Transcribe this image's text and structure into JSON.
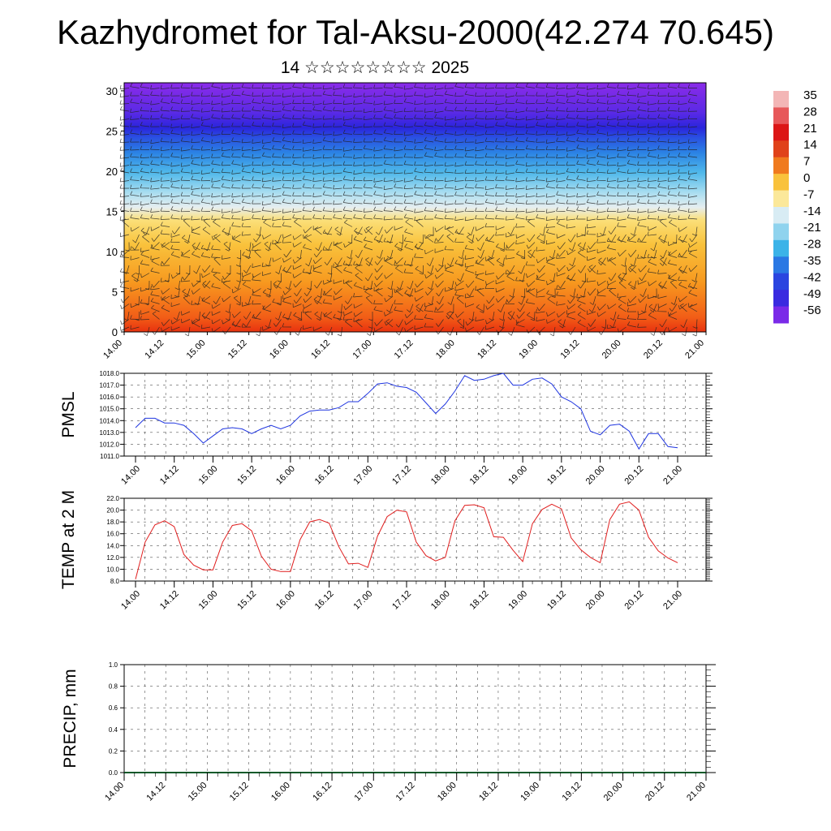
{
  "title": "Kazhydromet for Tal-Aksu-2000(42.274 70.645)",
  "subtitle": "14 ☆☆☆☆☆☆☆☆ 2025",
  "colors": {
    "pmsl_line": "#1f35e0",
    "temp_line": "#e01d1d",
    "grid": "#555555",
    "precip_baseline": "#0a5a2a"
  },
  "chart_data": [
    {
      "type": "heatmap",
      "name_hint": "cross-section",
      "x_tick_labels": [
        "14.00",
        "14.12",
        "15.00",
        "15.12",
        "16.00",
        "16.12",
        "17.00",
        "17.12",
        "18.00",
        "18.12",
        "19.00",
        "19.12",
        "20.00",
        "20.12",
        "21.00"
      ],
      "ylabel": "",
      "ylim": [
        0,
        31
      ],
      "y_ticks": [
        0,
        5,
        10,
        15,
        20,
        25,
        30
      ],
      "colorbar_labels": [
        "35",
        "28",
        "21",
        "14",
        "7",
        "0",
        "-7",
        "-14",
        "-21",
        "-28",
        "-35",
        "-42",
        "-49",
        "-56"
      ],
      "colorbar_colors": [
        "#f3b6b6",
        "#e7585a",
        "#dc1616",
        "#e0421a",
        "#f07a1e",
        "#f9c23c",
        "#fbe89a",
        "#d8ecf4",
        "#8fd3ee",
        "#3bb3e8",
        "#2a78e4",
        "#2a45e0",
        "#3a2ae0",
        "#7a2ae8"
      ],
      "levels_km": [
        0,
        5,
        10,
        15,
        20,
        25,
        30
      ],
      "has_wind_barbs": true
    },
    {
      "type": "line",
      "ylabel": "PMSL",
      "x_tick_labels": [
        "14.00",
        "14.12",
        "15.00",
        "15.12",
        "16.00",
        "16.12",
        "17.00",
        "17.12",
        "18.00",
        "18.12",
        "19.00",
        "19.12",
        "20.00",
        "20.12",
        "21.00"
      ],
      "y_tick_labels": [
        "1018.0",
        "1017.0",
        "1016.0",
        "1015.0",
        "1014.0",
        "1013.0",
        "1012.0",
        "1011.0"
      ],
      "ylim": [
        1011,
        1018
      ],
      "series": [
        {
          "values": [
            1013.4,
            1014.2,
            1014.2,
            1013.8,
            1013.8,
            1013.6,
            1012.9,
            1012.1,
            1012.7,
            1013.3,
            1013.4,
            1013.3,
            1012.9,
            1013.3,
            1013.6,
            1013.3,
            1013.6,
            1014.4,
            1014.8,
            1014.9,
            1014.9,
            1015.1,
            1015.6,
            1015.6,
            1016.3,
            1017.1,
            1017.2,
            1016.9,
            1016.8,
            1016.4,
            1015.5,
            1014.6,
            1015.4,
            1016.5,
            1017.8,
            1017.4,
            1017.5,
            1017.8,
            1018.0,
            1017.0,
            1017.0,
            1017.5,
            1017.6,
            1017.1,
            1016.0,
            1015.6,
            1015.0,
            1013.1,
            1012.8,
            1013.6,
            1013.7,
            1013.1,
            1011.6,
            1012.9,
            1012.9,
            1011.8,
            1011.7
          ]
        }
      ]
    },
    {
      "type": "line",
      "ylabel": "TEMP at 2 M",
      "x_tick_labels": [
        "14.00",
        "14.12",
        "15.00",
        "15.12",
        "16.00",
        "16.12",
        "17.00",
        "17.12",
        "18.00",
        "18.12",
        "19.00",
        "19.12",
        "20.00",
        "20.12",
        "21.00"
      ],
      "y_tick_labels": [
        "22.0",
        "20.0",
        "18.0",
        "16.0",
        "14.0",
        "12.0",
        "10.0",
        "8.0"
      ],
      "ylim": [
        8,
        22
      ],
      "series": [
        {
          "values": [
            8.3,
            14.6,
            17.5,
            18.2,
            17.2,
            12.5,
            10.7,
            9.9,
            9.9,
            14.6,
            17.4,
            17.7,
            16.5,
            12.2,
            10.0,
            9.6,
            9.6,
            15.0,
            18.0,
            18.4,
            17.8,
            13.8,
            10.9,
            11.0,
            10.3,
            15.6,
            18.9,
            20.0,
            19.7,
            14.6,
            12.3,
            11.4,
            12.0,
            18.2,
            20.8,
            20.9,
            20.4,
            15.5,
            15.4,
            13.2,
            11.3,
            17.7,
            20.1,
            21.0,
            20.2,
            15.3,
            13.3,
            12.0,
            11.1,
            18.4,
            21.0,
            21.4,
            20.0,
            15.4,
            13.1,
            11.9,
            11.1
          ]
        }
      ]
    },
    {
      "type": "bar",
      "ylabel": "PRECIP, mm",
      "x_tick_labels": [
        "14.00",
        "14.12",
        "15.00",
        "15.12",
        "16.00",
        "16.12",
        "17.00",
        "17.12",
        "18.00",
        "18.12",
        "19.00",
        "19.12",
        "20.00",
        "20.12",
        "21.00"
      ],
      "y_tick_labels": [
        "1.0",
        "0.8",
        "0.6",
        "0.4",
        "0.2",
        "0.0"
      ],
      "ylim": [
        0,
        1
      ],
      "values_all_zero": true
    }
  ]
}
